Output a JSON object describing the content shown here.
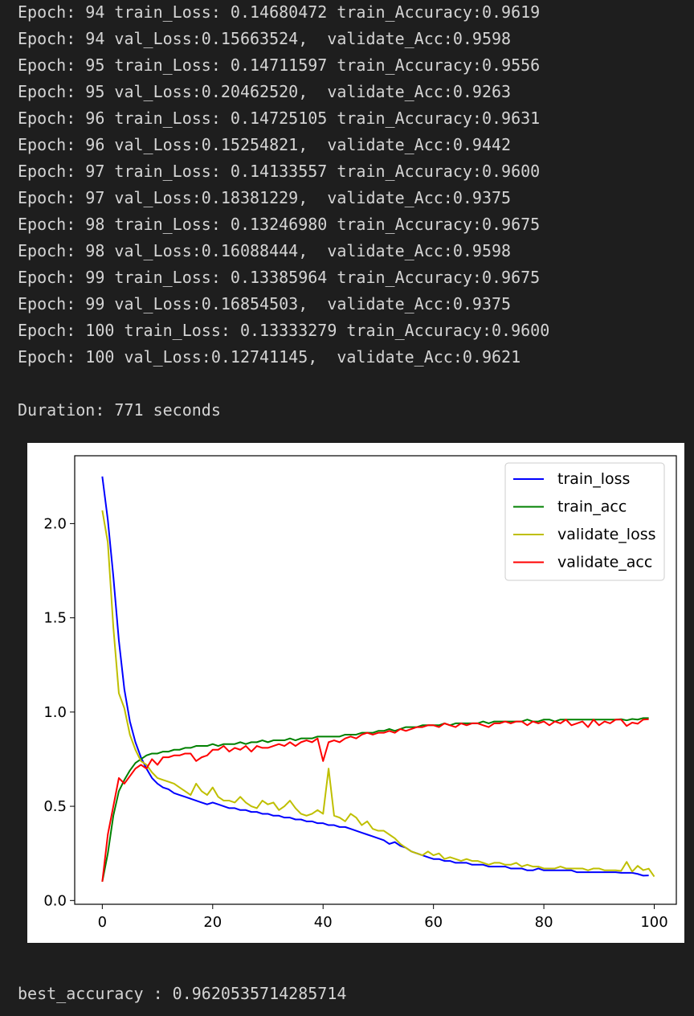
{
  "log": [
    "Epoch: 94 train_Loss: 0.14680472 train_Accuracy:0.9619",
    "Epoch: 94 val_Loss:0.15663524,  validate_Acc:0.9598",
    "Epoch: 95 train_Loss: 0.14711597 train_Accuracy:0.9556",
    "Epoch: 95 val_Loss:0.20462520,  validate_Acc:0.9263",
    "Epoch: 96 train_Loss: 0.14725105 train_Accuracy:0.9631",
    "Epoch: 96 val_Loss:0.15254821,  validate_Acc:0.9442",
    "Epoch: 97 train_Loss: 0.14133557 train_Accuracy:0.9600",
    "Epoch: 97 val_Loss:0.18381229,  validate_Acc:0.9375",
    "Epoch: 98 train_Loss: 0.13246980 train_Accuracy:0.9675",
    "Epoch: 98 val_Loss:0.16088444,  validate_Acc:0.9598",
    "Epoch: 99 train_Loss: 0.13385964 train_Accuracy:0.9675",
    "Epoch: 99 val_Loss:0.16854503,  validate_Acc:0.9375",
    "Epoch: 100 train_Loss: 0.13333279 train_Accuracy:0.9600",
    "Epoch: 100 val_Loss:0.12741145,  validate_Acc:0.9621"
  ],
  "duration": "Duration: 771 seconds",
  "best_accuracy": "best_accuracy : 0.9620535714285714",
  "chart_data": {
    "type": "line",
    "title": "",
    "xlabel": "",
    "ylabel": "",
    "xlim": [
      -5,
      104
    ],
    "ylim": [
      -0.02,
      2.36
    ],
    "x_ticks": [
      "0",
      "20",
      "40",
      "60",
      "80",
      "100"
    ],
    "y_ticks": [
      "0.0",
      "0.5",
      "1.0",
      "1.5",
      "2.0"
    ],
    "legend_position": "top-right",
    "grid": false,
    "series": [
      {
        "name": "train_loss",
        "color": "#0000ff",
        "values": [
          2.25,
          2.02,
          1.72,
          1.38,
          1.12,
          0.95,
          0.84,
          0.76,
          0.7,
          0.65,
          0.62,
          0.6,
          0.59,
          0.57,
          0.56,
          0.55,
          0.54,
          0.53,
          0.52,
          0.51,
          0.52,
          0.51,
          0.5,
          0.49,
          0.49,
          0.48,
          0.48,
          0.47,
          0.47,
          0.46,
          0.46,
          0.45,
          0.45,
          0.44,
          0.44,
          0.43,
          0.43,
          0.42,
          0.42,
          0.41,
          0.41,
          0.4,
          0.4,
          0.39,
          0.39,
          0.38,
          0.37,
          0.36,
          0.35,
          0.34,
          0.33,
          0.32,
          0.3,
          0.31,
          0.29,
          0.28,
          0.26,
          0.25,
          0.24,
          0.23,
          0.22,
          0.22,
          0.21,
          0.21,
          0.2,
          0.2,
          0.2,
          0.19,
          0.19,
          0.19,
          0.18,
          0.18,
          0.18,
          0.18,
          0.17,
          0.17,
          0.17,
          0.16,
          0.16,
          0.17,
          0.16,
          0.16,
          0.16,
          0.16,
          0.16,
          0.16,
          0.15,
          0.15,
          0.15,
          0.15,
          0.15,
          0.15,
          0.15,
          0.15,
          0.147,
          0.147,
          0.147,
          0.141,
          0.132,
          0.133
        ]
      },
      {
        "name": "train_acc",
        "color": "#008000",
        "values": [
          0.1,
          0.25,
          0.45,
          0.58,
          0.64,
          0.69,
          0.73,
          0.75,
          0.77,
          0.78,
          0.78,
          0.79,
          0.79,
          0.8,
          0.8,
          0.81,
          0.81,
          0.82,
          0.82,
          0.82,
          0.83,
          0.82,
          0.83,
          0.83,
          0.83,
          0.84,
          0.83,
          0.84,
          0.84,
          0.85,
          0.84,
          0.85,
          0.85,
          0.85,
          0.86,
          0.85,
          0.86,
          0.86,
          0.86,
          0.87,
          0.87,
          0.87,
          0.87,
          0.87,
          0.88,
          0.88,
          0.88,
          0.89,
          0.89,
          0.89,
          0.9,
          0.9,
          0.91,
          0.9,
          0.91,
          0.92,
          0.92,
          0.92,
          0.93,
          0.93,
          0.93,
          0.93,
          0.94,
          0.93,
          0.94,
          0.94,
          0.94,
          0.94,
          0.94,
          0.95,
          0.94,
          0.95,
          0.95,
          0.95,
          0.95,
          0.95,
          0.95,
          0.96,
          0.95,
          0.95,
          0.96,
          0.96,
          0.95,
          0.96,
          0.96,
          0.96,
          0.96,
          0.96,
          0.96,
          0.96,
          0.96,
          0.96,
          0.96,
          0.96,
          0.962,
          0.956,
          0.963,
          0.96,
          0.968,
          0.968
        ]
      },
      {
        "name": "validate_loss",
        "color": "#bfbf00",
        "values": [
          2.07,
          1.9,
          1.45,
          1.1,
          1.02,
          0.88,
          0.8,
          0.74,
          0.72,
          0.68,
          0.65,
          0.64,
          0.63,
          0.62,
          0.6,
          0.58,
          0.56,
          0.62,
          0.58,
          0.56,
          0.6,
          0.55,
          0.53,
          0.53,
          0.52,
          0.55,
          0.52,
          0.5,
          0.49,
          0.53,
          0.51,
          0.52,
          0.48,
          0.5,
          0.53,
          0.49,
          0.46,
          0.45,
          0.46,
          0.48,
          0.46,
          0.7,
          0.45,
          0.44,
          0.42,
          0.46,
          0.44,
          0.4,
          0.42,
          0.38,
          0.37,
          0.37,
          0.35,
          0.33,
          0.3,
          0.28,
          0.26,
          0.25,
          0.24,
          0.26,
          0.24,
          0.25,
          0.22,
          0.23,
          0.22,
          0.21,
          0.22,
          0.21,
          0.21,
          0.2,
          0.19,
          0.2,
          0.2,
          0.19,
          0.19,
          0.2,
          0.18,
          0.19,
          0.18,
          0.18,
          0.17,
          0.17,
          0.17,
          0.18,
          0.17,
          0.17,
          0.17,
          0.17,
          0.16,
          0.17,
          0.17,
          0.16,
          0.16,
          0.16,
          0.157,
          0.205,
          0.153,
          0.184,
          0.161,
          0.169,
          0.127
        ]
      },
      {
        "name": "validate_acc",
        "color": "#ff0000",
        "values": [
          0.1,
          0.35,
          0.5,
          0.65,
          0.62,
          0.66,
          0.7,
          0.72,
          0.7,
          0.75,
          0.72,
          0.76,
          0.76,
          0.77,
          0.77,
          0.78,
          0.78,
          0.74,
          0.76,
          0.77,
          0.8,
          0.8,
          0.82,
          0.79,
          0.81,
          0.8,
          0.82,
          0.79,
          0.82,
          0.81,
          0.81,
          0.82,
          0.83,
          0.82,
          0.84,
          0.82,
          0.84,
          0.85,
          0.84,
          0.86,
          0.74,
          0.84,
          0.85,
          0.84,
          0.86,
          0.87,
          0.86,
          0.88,
          0.89,
          0.88,
          0.89,
          0.89,
          0.9,
          0.89,
          0.91,
          0.9,
          0.91,
          0.92,
          0.92,
          0.93,
          0.93,
          0.92,
          0.94,
          0.93,
          0.92,
          0.94,
          0.93,
          0.94,
          0.94,
          0.93,
          0.92,
          0.94,
          0.94,
          0.95,
          0.94,
          0.95,
          0.95,
          0.93,
          0.95,
          0.94,
          0.95,
          0.93,
          0.95,
          0.94,
          0.96,
          0.93,
          0.94,
          0.95,
          0.92,
          0.96,
          0.93,
          0.95,
          0.94,
          0.96,
          0.96,
          0.926,
          0.944,
          0.938,
          0.96,
          0.962
        ]
      }
    ]
  }
}
